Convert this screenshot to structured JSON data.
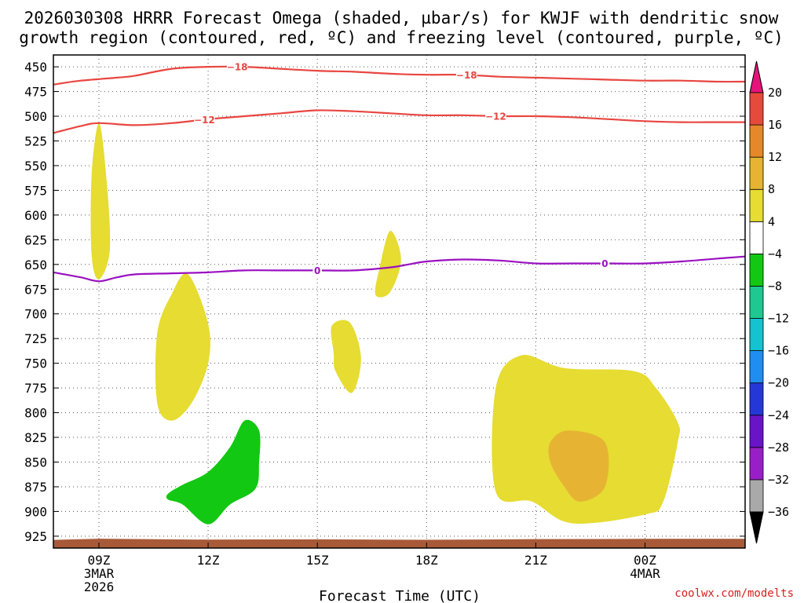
{
  "chart_data": {
    "type": "time-height cross-section",
    "title_line1": "2026030308 HRRR Forecast Omega (shaded, µbar/s) for KWJF with dendritic snow",
    "title_line2": "growth region (contoured, red, ºC) and freezing level (contoured, purple, ºC)",
    "xlabel": "Forecast Time (UTC)",
    "credit": "coolwx.com/modelts",
    "x_range_hours": [
      7.75,
      26.75
    ],
    "y_range_hPa": [
      438,
      937
    ],
    "y_ticks": [
      450,
      475,
      500,
      525,
      550,
      575,
      600,
      625,
      650,
      675,
      700,
      725,
      750,
      775,
      800,
      825,
      850,
      875,
      900,
      925
    ],
    "x_ticks": [
      {
        "hour": 9,
        "label": "09Z",
        "date": "3MAR",
        "year": "2026"
      },
      {
        "hour": 12,
        "label": "12Z",
        "date": "",
        "year": ""
      },
      {
        "hour": 15,
        "label": "15Z",
        "date": "",
        "year": ""
      },
      {
        "hour": 18,
        "label": "18Z",
        "date": "",
        "year": ""
      },
      {
        "hour": 21,
        "label": "21Z",
        "date": "",
        "year": ""
      },
      {
        "hour": 24,
        "label": "00Z",
        "date": "4MAR",
        "year": ""
      }
    ],
    "colorbar": {
      "levels": [
        -36,
        -32,
        -28,
        -24,
        -20,
        -16,
        -12,
        -8,
        -4,
        4,
        8,
        12,
        16,
        20
      ],
      "labels": [
        "20",
        "16",
        "12",
        "8",
        "4",
        "−4",
        "−8",
        "−12",
        "−16",
        "−20",
        "−24",
        "−28",
        "−32",
        "−36"
      ],
      "colors": [
        "#a9a9a9",
        "#9a1ec8",
        "#6a14c8",
        "#2438d8",
        "#1f8ef0",
        "#14c2d0",
        "#1ec890",
        "#12c812",
        "#ffffff",
        "#e6dc32",
        "#e6b432",
        "#e6882a",
        "#e64a3a"
      ],
      "over_color": "#e6147a",
      "under_color": "#000000"
    },
    "omega_regions": [
      {
        "name": "plume-09z",
        "range": "4 to 8",
        "color": "#e6dc32",
        "points": [
          [
            9.0,
            507
          ],
          [
            9.2,
            560
          ],
          [
            9.3,
            635
          ],
          [
            9.0,
            665
          ],
          [
            8.8,
            640
          ],
          [
            8.8,
            560
          ]
        ]
      },
      {
        "name": "plume-11z",
        "range": "4 to 8",
        "color": "#e6dc32",
        "points": [
          [
            11.0,
            680
          ],
          [
            11.45,
            660
          ],
          [
            12.0,
            710
          ],
          [
            12.0,
            750
          ],
          [
            11.55,
            790
          ],
          [
            11.0,
            808
          ],
          [
            10.6,
            790
          ],
          [
            10.6,
            720
          ]
        ]
      },
      {
        "name": "plume-1530z",
        "range": "4 to 8",
        "color": "#e6dc32",
        "points": [
          [
            15.4,
            712
          ],
          [
            15.9,
            709
          ],
          [
            16.2,
            745
          ],
          [
            15.95,
            780
          ],
          [
            15.5,
            758
          ],
          [
            15.45,
            740
          ]
        ]
      },
      {
        "name": "plume-1630z",
        "range": "4 to 8",
        "color": "#e6dc32",
        "points": [
          [
            16.7,
            655
          ],
          [
            17.0,
            616
          ],
          [
            17.3,
            645
          ],
          [
            17.0,
            678
          ],
          [
            16.6,
            681
          ]
        ]
      },
      {
        "name": "sinking-1230z",
        "range": "-8 to -4",
        "color": "#12c812",
        "points": [
          [
            10.9,
            882
          ],
          [
            11.3,
            873
          ],
          [
            12.0,
            860
          ],
          [
            12.6,
            835
          ],
          [
            13.0,
            808
          ],
          [
            13.4,
            818
          ],
          [
            13.4,
            850
          ],
          [
            13.3,
            877
          ],
          [
            12.6,
            893
          ],
          [
            12.0,
            913
          ],
          [
            11.3,
            893
          ],
          [
            10.9,
            888
          ]
        ]
      },
      {
        "name": "broad-region-22z",
        "range": "4 to 8",
        "color": "#e6dc32",
        "points": [
          [
            19.9,
            775
          ],
          [
            20.6,
            742
          ],
          [
            21.8,
            755
          ],
          [
            23.7,
            758
          ],
          [
            24.3,
            775
          ],
          [
            24.9,
            810
          ],
          [
            24.9,
            830
          ],
          [
            24.5,
            890
          ],
          [
            24.0,
            903
          ],
          [
            22.0,
            912
          ],
          [
            20.9,
            890
          ],
          [
            19.9,
            880
          ]
        ]
      },
      {
        "name": "core-22z",
        "range": "8 to 12",
        "color": "#e6b432",
        "points": [
          [
            21.4,
            830
          ],
          [
            21.9,
            818
          ],
          [
            22.9,
            830
          ],
          [
            22.9,
            875
          ],
          [
            22.2,
            890
          ],
          [
            21.75,
            873
          ],
          [
            21.4,
            850
          ]
        ]
      }
    ],
    "contours": [
      {
        "name": "dgz-minus18",
        "color": "#e84640",
        "label": "−18",
        "label_hours": [
          12.8,
          19.1
        ],
        "points": [
          [
            7.75,
            468
          ],
          [
            8.5,
            464
          ],
          [
            9.5,
            461
          ],
          [
            10.0,
            459
          ],
          [
            11.0,
            452
          ],
          [
            12.0,
            450
          ],
          [
            13.0,
            450
          ],
          [
            14.0,
            452
          ],
          [
            15.0,
            454
          ],
          [
            16.0,
            455
          ],
          [
            17.0,
            457
          ],
          [
            18.0,
            458
          ],
          [
            19.0,
            458
          ],
          [
            20.0,
            460
          ],
          [
            21.0,
            461
          ],
          [
            22.0,
            462
          ],
          [
            23.0,
            463
          ],
          [
            24.0,
            464
          ],
          [
            25.0,
            464
          ],
          [
            26.0,
            465
          ],
          [
            26.75,
            465
          ]
        ]
      },
      {
        "name": "dgz-minus12",
        "color": "#e84640",
        "label": "−12",
        "label_hours": [
          11.9,
          19.9
        ],
        "points": [
          [
            7.75,
            517
          ],
          [
            8.5,
            510
          ],
          [
            9.0,
            507
          ],
          [
            10.0,
            509
          ],
          [
            11.0,
            507
          ],
          [
            12.0,
            503
          ],
          [
            13.0,
            500
          ],
          [
            14.0,
            497
          ],
          [
            15.0,
            494
          ],
          [
            16.0,
            495
          ],
          [
            17.0,
            497
          ],
          [
            18.0,
            499
          ],
          [
            19.0,
            499
          ],
          [
            20.0,
            500
          ],
          [
            21.0,
            500
          ],
          [
            22.0,
            501
          ],
          [
            23.0,
            503
          ],
          [
            24.0,
            505
          ],
          [
            25.0,
            506
          ],
          [
            26.0,
            506
          ],
          [
            26.75,
            506
          ]
        ]
      },
      {
        "name": "freezing-level",
        "color": "#9a10c0",
        "label": "0",
        "label_hours": [
          15.0,
          22.9
        ],
        "points": [
          [
            7.75,
            658
          ],
          [
            8.5,
            663
          ],
          [
            9.0,
            667
          ],
          [
            9.5,
            663
          ],
          [
            10.0,
            660
          ],
          [
            11.0,
            659
          ],
          [
            12.0,
            658
          ],
          [
            13.0,
            656
          ],
          [
            14.0,
            656
          ],
          [
            15.0,
            656
          ],
          [
            16.0,
            656
          ],
          [
            17.0,
            653
          ],
          [
            17.5,
            650
          ],
          [
            18.0,
            647
          ],
          [
            19.0,
            645
          ],
          [
            20.0,
            646
          ],
          [
            21.0,
            649
          ],
          [
            22.0,
            649
          ],
          [
            23.0,
            649
          ],
          [
            24.0,
            649
          ],
          [
            25.0,
            647
          ],
          [
            26.0,
            644
          ],
          [
            26.75,
            642
          ]
        ]
      }
    ],
    "surface": {
      "name": "terrain",
      "color": "#a85a38",
      "pressure_hPa": 928
    }
  }
}
